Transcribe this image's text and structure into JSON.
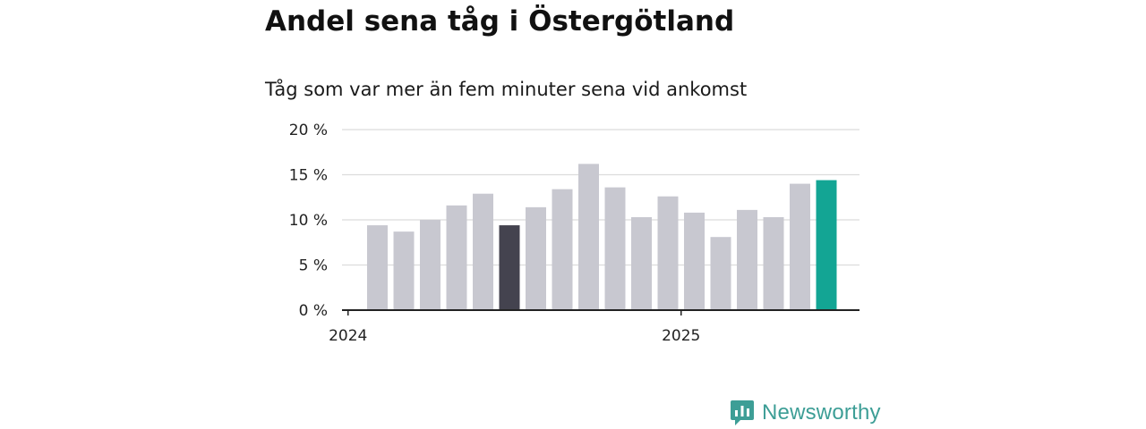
{
  "colors": {
    "bar_default": "#c8c8d0",
    "bar_highlight_dark": "#44434f",
    "bar_highlight_latest": "#13a594",
    "grid": "#dcdcdc",
    "axis": "#222222",
    "brand": "#3d9e96"
  },
  "brand": {
    "name": "Newsworthy",
    "icon": "bar-chart-speech-bubble-icon"
  },
  "chart_data": {
    "type": "bar",
    "title": "Andel sena tåg i Östergötland",
    "subtitle": "Tåg som var mer än fem minuter sena vid ankomst",
    "xlabel": "",
    "ylabel": "",
    "ylim": [
      0,
      20
    ],
    "y_ticks": [
      0,
      5,
      10,
      15,
      20
    ],
    "y_tick_labels": [
      "0 %",
      "5 %",
      "10 %",
      "15 %",
      "20 %"
    ],
    "x_tick_labels": [
      {
        "label": "2024",
        "after_bar_index": 0
      },
      {
        "label": "2025",
        "after_bar_index": 12
      }
    ],
    "grid": true,
    "values": [
      9.4,
      8.7,
      10.0,
      11.6,
      12.9,
      9.4,
      11.4,
      13.4,
      16.2,
      13.6,
      10.3,
      12.6,
      10.8,
      8.1,
      11.1,
      10.3,
      14.0,
      14.4
    ],
    "highlight": {
      "dark_index": 5,
      "latest_index": 17
    }
  }
}
